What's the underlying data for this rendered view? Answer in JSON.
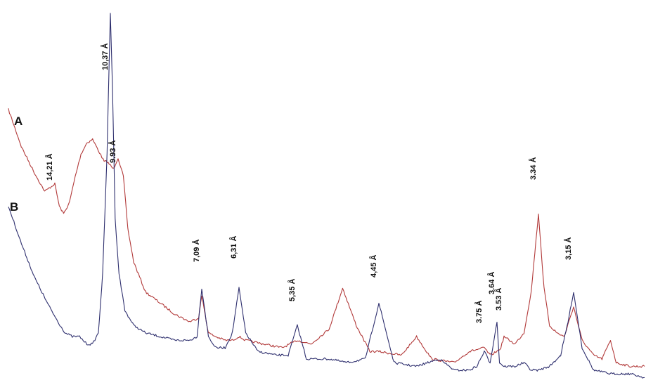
{
  "chart_data": {
    "type": "line",
    "title": "",
    "xlabel": "",
    "ylabel": "",
    "grid": false,
    "legend": "none",
    "x_direction": "decreasing d-spacing (Å), left to right",
    "series": [
      {
        "name": "A",
        "color": "#b23a3a",
        "points": [
          [
            16.0,
            0.74
          ],
          [
            15.5,
            0.64
          ],
          [
            15.0,
            0.57
          ],
          [
            14.6,
            0.52
          ],
          [
            14.21,
            0.54
          ],
          [
            13.9,
            0.48
          ],
          [
            13.6,
            0.46
          ],
          [
            13.2,
            0.49
          ],
          [
            12.8,
            0.56
          ],
          [
            12.4,
            0.62
          ],
          [
            12.0,
            0.65
          ],
          [
            11.6,
            0.66
          ],
          [
            11.2,
            0.63
          ],
          [
            10.8,
            0.6
          ],
          [
            10.6,
            0.6
          ],
          [
            10.37,
            0.59
          ],
          [
            10.2,
            0.58
          ],
          [
            9.93,
            0.61
          ],
          [
            9.75,
            0.56
          ],
          [
            9.6,
            0.42
          ],
          [
            9.4,
            0.33
          ],
          [
            9.0,
            0.25
          ],
          [
            8.5,
            0.22
          ],
          [
            8.0,
            0.19
          ],
          [
            7.5,
            0.17
          ],
          [
            7.2,
            0.18
          ],
          [
            7.09,
            0.24
          ],
          [
            6.95,
            0.14
          ],
          [
            6.8,
            0.13
          ],
          [
            6.6,
            0.12
          ],
          [
            6.45,
            0.12
          ],
          [
            6.31,
            0.13
          ],
          [
            6.2,
            0.12
          ],
          [
            5.9,
            0.11
          ],
          [
            5.6,
            0.1
          ],
          [
            5.35,
            0.12
          ],
          [
            5.2,
            0.11
          ],
          [
            5.0,
            0.15
          ],
          [
            4.85,
            0.26
          ],
          [
            4.7,
            0.16
          ],
          [
            4.55,
            0.09
          ],
          [
            4.45,
            0.09
          ],
          [
            4.3,
            0.08
          ],
          [
            4.2,
            0.13
          ],
          [
            4.1,
            0.07
          ],
          [
            3.95,
            0.06
          ],
          [
            3.85,
            0.09
          ],
          [
            3.75,
            0.1
          ],
          [
            3.7,
            0.08
          ],
          [
            3.64,
            0.09
          ],
          [
            3.58,
            0.1
          ],
          [
            3.53,
            0.13
          ],
          [
            3.47,
            0.11
          ],
          [
            3.42,
            0.14
          ],
          [
            3.38,
            0.25
          ],
          [
            3.34,
            0.46
          ],
          [
            3.31,
            0.26
          ],
          [
            3.28,
            0.16
          ],
          [
            3.24,
            0.14
          ],
          [
            3.2,
            0.13
          ],
          [
            3.17,
            0.18
          ],
          [
            3.15,
            0.21
          ],
          [
            3.12,
            0.12
          ],
          [
            3.08,
            0.08
          ],
          [
            3.05,
            0.07
          ],
          [
            3.02,
            0.12
          ],
          [
            3.0,
            0.06
          ],
          [
            2.95,
            0.05
          ],
          [
            2.9,
            0.05
          ]
        ]
      },
      {
        "name": "B",
        "color": "#2e2f6e",
        "points": [
          [
            16.0,
            0.48
          ],
          [
            15.5,
            0.38
          ],
          [
            15.0,
            0.29
          ],
          [
            14.5,
            0.22
          ],
          [
            14.0,
            0.17
          ],
          [
            13.5,
            0.14
          ],
          [
            13.0,
            0.13
          ],
          [
            12.5,
            0.13
          ],
          [
            12.0,
            0.11
          ],
          [
            11.6,
            0.11
          ],
          [
            11.2,
            0.14
          ],
          [
            10.9,
            0.3
          ],
          [
            10.6,
            0.62
          ],
          [
            10.37,
            1.0
          ],
          [
            10.25,
            0.8
          ],
          [
            10.1,
            0.45
          ],
          [
            9.9,
            0.3
          ],
          [
            9.7,
            0.2
          ],
          [
            9.4,
            0.16
          ],
          [
            9.0,
            0.14
          ],
          [
            8.5,
            0.13
          ],
          [
            8.0,
            0.12
          ],
          [
            7.5,
            0.12
          ],
          [
            7.25,
            0.13
          ],
          [
            7.09,
            0.26
          ],
          [
            6.95,
            0.13
          ],
          [
            6.8,
            0.1
          ],
          [
            6.6,
            0.1
          ],
          [
            6.45,
            0.14
          ],
          [
            6.31,
            0.26
          ],
          [
            6.2,
            0.14
          ],
          [
            6.0,
            0.09
          ],
          [
            5.7,
            0.08
          ],
          [
            5.5,
            0.08
          ],
          [
            5.35,
            0.16
          ],
          [
            5.25,
            0.07
          ],
          [
            5.0,
            0.07
          ],
          [
            4.8,
            0.06
          ],
          [
            4.6,
            0.07
          ],
          [
            4.45,
            0.22
          ],
          [
            4.35,
            0.06
          ],
          [
            4.2,
            0.05
          ],
          [
            4.05,
            0.07
          ],
          [
            3.95,
            0.04
          ],
          [
            3.85,
            0.04
          ],
          [
            3.8,
            0.05
          ],
          [
            3.75,
            0.09
          ],
          [
            3.7,
            0.06
          ],
          [
            3.64,
            0.17
          ],
          [
            3.6,
            0.06
          ],
          [
            3.53,
            0.05
          ],
          [
            3.47,
            0.05
          ],
          [
            3.42,
            0.06
          ],
          [
            3.38,
            0.04
          ],
          [
            3.34,
            0.04
          ],
          [
            3.28,
            0.05
          ],
          [
            3.22,
            0.08
          ],
          [
            3.18,
            0.17
          ],
          [
            3.15,
            0.25
          ],
          [
            3.12,
            0.1
          ],
          [
            3.08,
            0.04
          ],
          [
            3.02,
            0.03
          ],
          [
            2.95,
            0.03
          ],
          [
            2.9,
            0.02
          ]
        ]
      }
    ],
    "series_labels": [
      {
        "text": "A",
        "series": 0
      },
      {
        "text": "B",
        "series": 1
      }
    ],
    "annotations": [
      {
        "text": "14,21 Å",
        "x": 14.21,
        "y": 0.54
      },
      {
        "text": "10,37 Å",
        "x": 10.37,
        "y": 1.0
      },
      {
        "text": "9.93 Å",
        "x": 9.93,
        "y": 0.61
      },
      {
        "text": "7,09 Å",
        "x": 7.09,
        "y": 0.26
      },
      {
        "text": "6,31 Å",
        "x": 6.31,
        "y": 0.26
      },
      {
        "text": "5,35 Å",
        "x": 5.35,
        "y": 0.16
      },
      {
        "text": "4,45 Å",
        "x": 4.45,
        "y": 0.22
      },
      {
        "text": "3.75 Å",
        "x": 3.75,
        "y": 0.1
      },
      {
        "text": "3.64 Å",
        "x": 3.64,
        "y": 0.17
      },
      {
        "text": "3.53 Å",
        "x": 3.53,
        "y": 0.13
      },
      {
        "text": "3.34 Å",
        "x": 3.34,
        "y": 0.46
      },
      {
        "text": "3,15 Å",
        "x": 3.15,
        "y": 0.25
      }
    ]
  }
}
